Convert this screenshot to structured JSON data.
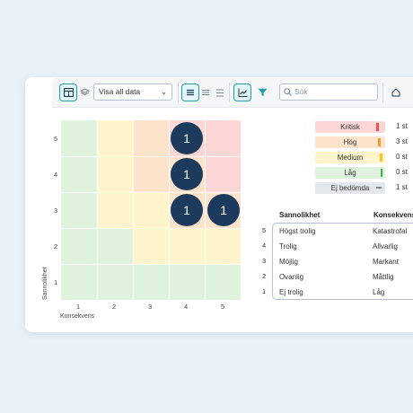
{
  "toolbar": {
    "view_select_value": "Visa all data",
    "search_placeholder": "Sök"
  },
  "matrix": {
    "y_ticks": [
      "5",
      "4",
      "3",
      "2",
      "1"
    ],
    "x_ticks": [
      "1",
      "2",
      "3",
      "4",
      "5"
    ],
    "x_axis_title": "Konsekvens",
    "y_axis_title": "Sannolikhet",
    "bubbles": [
      {
        "sannolikhet": 5,
        "konsekvens": 4,
        "count": "1"
      },
      {
        "sannolikhet": 4,
        "konsekvens": 4,
        "count": "1"
      },
      {
        "sannolikhet": 3,
        "konsekvens": 4,
        "count": "1"
      },
      {
        "sannolikhet": 3,
        "konsekvens": 5,
        "count": "1"
      }
    ],
    "colors": {
      "green": "#dff2dd",
      "yellow": "#fdf4cc",
      "orange": "#fde2cc",
      "red": "#fcd7d6",
      "bubble": "#1b3a5c"
    }
  },
  "legend": [
    {
      "label": "Kritisk",
      "count": "1 st",
      "bg": "#fcd7d6",
      "bar": "#e8534a"
    },
    {
      "label": "Hög",
      "count": "3 st",
      "bg": "#fde2cc",
      "bar": "#f29a3a"
    },
    {
      "label": "Medium",
      "count": "0 st",
      "bg": "#fdf4cc",
      "bar": "#f3c623"
    },
    {
      "label": "Låg",
      "count": "0 st",
      "bg": "#dff2dd",
      "bar": "#43b24a"
    },
    {
      "label": "Ej bedömda",
      "count": "1 st",
      "bg": "#e3e7ec",
      "bar": "#7d8893"
    }
  ],
  "scale": {
    "header_sannolikhet": "Sannolikhet",
    "header_konsekvens": "Konsekvens",
    "rows": [
      {
        "num": "5",
        "sannolikhet": "Högst trolig",
        "konsekvens": "Katastrofal"
      },
      {
        "num": "4",
        "sannolikhet": "Trolig",
        "konsekvens": "Allvarlig"
      },
      {
        "num": "3",
        "sannolikhet": "Möjlig",
        "konsekvens": "Markant"
      },
      {
        "num": "2",
        "sannolikhet": "Ovanlig",
        "konsekvens": "Måttlig"
      },
      {
        "num": "1",
        "sannolikhet": "Ej trolig",
        "konsekvens": "Låg"
      }
    ]
  }
}
